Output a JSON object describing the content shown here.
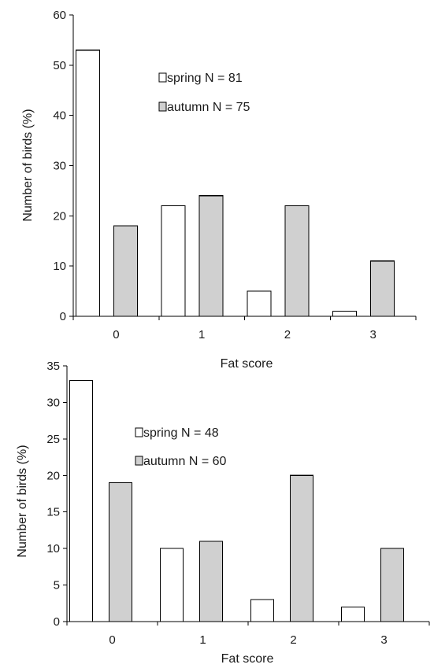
{
  "chart_data": [
    {
      "type": "bar",
      "categories": [
        "0",
        "1",
        "2",
        "3"
      ],
      "series": [
        {
          "name": "spring N = 81",
          "values": [
            53,
            22,
            5,
            1
          ],
          "color": "#ffffff"
        },
        {
          "name": "autumn N = 75",
          "values": [
            18,
            24,
            22,
            11
          ],
          "color": "#d0d0d0"
        }
      ],
      "xlabel": "Fat score",
      "ylabel": "Number of birds (%)",
      "ylim": [
        0,
        60
      ],
      "yticks": [
        "0",
        "10",
        "20",
        "30",
        "40",
        "50",
        "60"
      ],
      "grid": false,
      "legend_position": "top-center"
    },
    {
      "type": "bar",
      "categories": [
        "0",
        "1",
        "2",
        "3"
      ],
      "series": [
        {
          "name": "spring N = 48",
          "values": [
            33,
            10,
            3,
            2
          ],
          "color": "#ffffff"
        },
        {
          "name": "autumn N = 60",
          "values": [
            19,
            11,
            20,
            10
          ],
          "color": "#d0d0d0"
        }
      ],
      "xlabel": "Fat score",
      "ylabel": "Number of birds (%)",
      "ylim": [
        0,
        35
      ],
      "yticks": [
        "0",
        "5",
        "10",
        "15",
        "20",
        "25",
        "30",
        "35"
      ],
      "grid": false,
      "legend_position": "top-center"
    }
  ]
}
